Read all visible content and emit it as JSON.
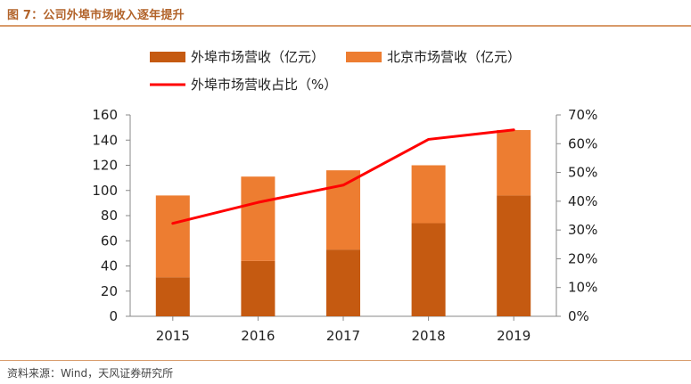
{
  "title": "图 7：公司外埠市场收入逐年提升",
  "source": "资料来源：Wind，天风证券研究所",
  "colors": {
    "outer": "#c55a11",
    "beijing": "#ed7d31",
    "ratio": "#ff0000",
    "axis": "#888888",
    "accent": "#b2632a"
  },
  "chart_data": {
    "type": "bar",
    "stacked": true,
    "categories": [
      "2015",
      "2016",
      "2017",
      "2018",
      "2019"
    ],
    "series": [
      {
        "name": "外埠市场营收（亿元）",
        "axis": "left",
        "values": [
          31,
          44,
          53,
          74,
          96
        ]
      },
      {
        "name": "北京市场营收（亿元）",
        "axis": "left",
        "values": [
          65,
          67,
          63,
          46,
          52
        ]
      },
      {
        "name": "外埠市场营收占比（%）",
        "type": "line",
        "axis": "right",
        "values": [
          32.3,
          39.6,
          45.6,
          61.5,
          64.8
        ]
      }
    ],
    "ylim": [
      0,
      160
    ],
    "yticks": [
      "0",
      "20",
      "40",
      "60",
      "80",
      "100",
      "120",
      "140",
      "160"
    ],
    "y2lim": [
      0,
      70
    ],
    "y2ticks": [
      "0%",
      "10%",
      "20%",
      "30%",
      "40%",
      "50%",
      "60%",
      "70%"
    ],
    "legend": "top",
    "grid": false
  }
}
